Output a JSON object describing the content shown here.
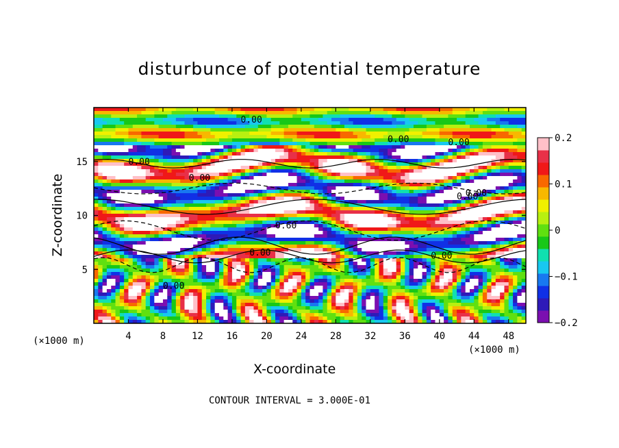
{
  "chart_data": {
    "type": "heatmap",
    "title": "disturbunce of potential temperature",
    "xlabel": "X-coordinate",
    "ylabel": "Z-coordinate",
    "x_unit_label_left": "(×1000 m)",
    "x_unit_label_right": "(×1000 m)",
    "footer": "CONTOUR INTERVAL = 3.000E-01",
    "xlim": [
      0,
      50
    ],
    "ylim": [
      0,
      20
    ],
    "x_ticks": [
      4,
      8,
      12,
      16,
      20,
      24,
      28,
      32,
      36,
      40,
      44,
      48
    ],
    "y_ticks": [
      5,
      10,
      15
    ],
    "colorbar": {
      "range": [
        -0.2,
        0.2
      ],
      "ticks": [
        "0.2",
        "0.1",
        "0",
        "−0.1",
        "−0.2"
      ],
      "colors": [
        "#7b0fb0",
        "#2e1ab8",
        "#1030e6",
        "#1878f0",
        "#18c8f0",
        "#10e0b0",
        "#18c818",
        "#60e010",
        "#b8f010",
        "#f0f000",
        "#f8b800",
        "#f86800",
        "#f01818",
        "#e83048",
        "#ffc0c8"
      ]
    },
    "contour_labels": [
      "0.00",
      "0.00",
      "0.00",
      "0.00",
      "0.00",
      "0.00",
      "0.60",
      "0.00",
      "0.00",
      "0.00",
      "0.00"
    ]
  }
}
